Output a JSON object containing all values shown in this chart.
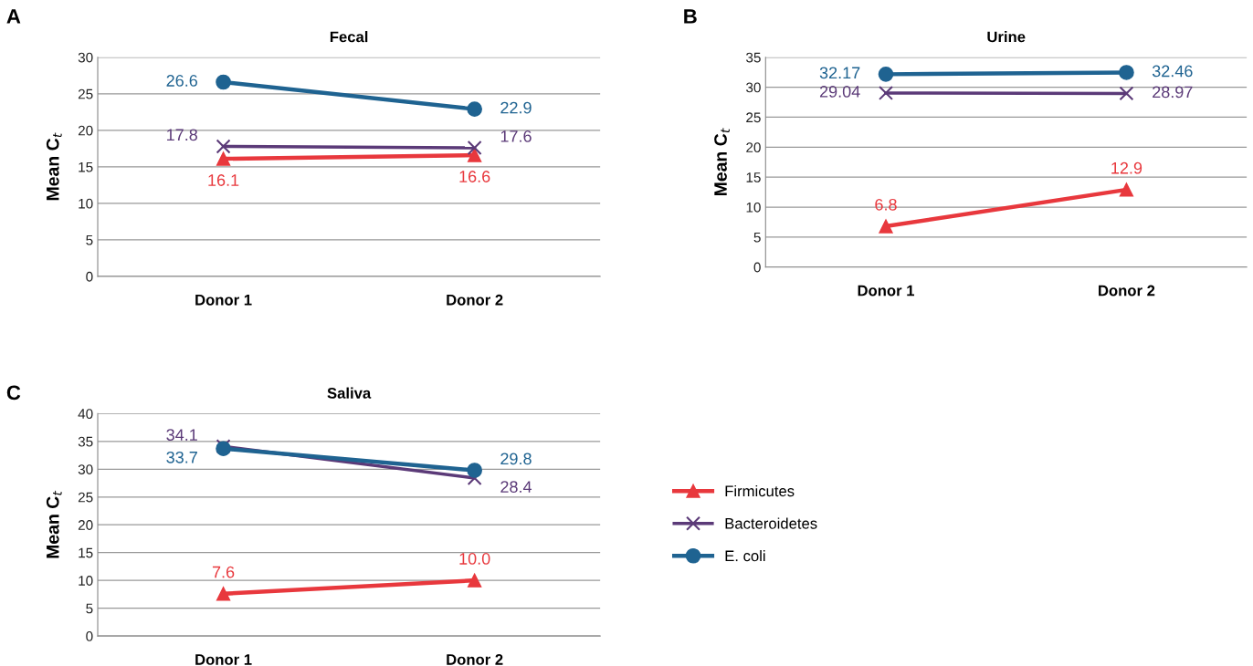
{
  "chart_data": [
    {
      "type": "line",
      "title": "Fecal",
      "ylabel": "Mean C$_{t}$",
      "categories": [
        "Donor 1",
        "Donor 2"
      ],
      "ylim": [
        0,
        30
      ],
      "yticks": [
        0,
        5,
        10,
        15,
        20,
        25,
        30
      ],
      "grid": "y",
      "data_labels": true,
      "annotations": [
        "A"
      ],
      "series": [
        {
          "color": "#e8383d",
          "marker": "triangle",
          "values": [
            16.1,
            16.6
          ]
        },
        {
          "color": "#5b3a78",
          "marker": "cross",
          "values": [
            17.8,
            17.6
          ]
        },
        {
          "color": "#1f6391",
          "marker": "circle",
          "values": [
            26.6,
            22.9
          ]
        }
      ]
    },
    {
      "type": "line",
      "title": "Urine",
      "ylabel": "Mean C$_{t}$",
      "categories": [
        "Donor 1",
        "Donor 2"
      ],
      "ylim": [
        0,
        35
      ],
      "yticks": [
        0,
        5,
        10,
        15,
        20,
        25,
        30,
        35
      ],
      "grid": "y",
      "annotations": [
        "B"
      ],
      "series": [
        {
          "color": "#e8383d",
          "marker": "triangle",
          "values": [
            6.8,
            12.9
          ],
          "value_labels": [
            "6.8",
            "12.9"
          ]
        },
        {
          "color": "#5b3a78",
          "marker": "cross",
          "values": [
            29.04,
            28.97
          ],
          "value_labels": [
            "29.04",
            "28.97"
          ]
        },
        {
          "color": "#1f6391",
          "marker": "circle",
          "values": [
            32.17,
            32.46
          ],
          "value_labels": [
            "32.17",
            "32.46"
          ]
        }
      ]
    },
    {
      "type": "line",
      "title": "Saliva",
      "ylabel": "Mean C$_{t}$",
      "categories": [
        "Donor 1",
        "Donor 2"
      ],
      "ylim": [
        0,
        40
      ],
      "yticks": [
        0,
        5,
        10,
        15,
        20,
        25,
        30,
        35,
        40
      ],
      "grid": "y",
      "legend": "right",
      "annotations": [
        "C"
      ],
      "series": [
        {
          "name": "Firmicutes",
          "color": "#e8383d",
          "marker": "triangle",
          "values": [
            7.6,
            10.0
          ],
          "value_labels": [
            "7.6",
            "10.0"
          ]
        },
        {
          "name": "Bacteroidetes",
          "color": "#5b3a78",
          "marker": "cross",
          "values": [
            34.1,
            28.4
          ],
          "value_labels": [
            "34.1",
            "28.4"
          ]
        },
        {
          "name": "E. coli",
          "color": "#1f6391",
          "marker": "circle",
          "values": [
            33.7,
            29.8
          ],
          "value_labels": [
            "33.7",
            "29.8"
          ]
        }
      ]
    }
  ]
}
